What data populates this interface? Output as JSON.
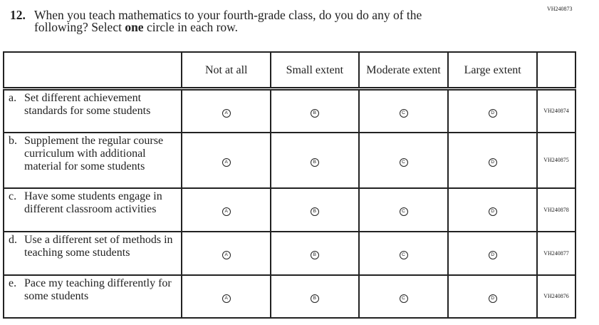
{
  "form_code": "VH240873",
  "question": {
    "number": "12.",
    "line1": "When you teach mathematics to your fourth-grade class, do you do any of the",
    "line2_pre": "following? Select ",
    "line2_bold": "one",
    "line2_post": " circle in each row."
  },
  "columns": [
    "Not at all",
    "Small extent",
    "Moderate extent",
    "Large extent"
  ],
  "bubble_letters": [
    "A",
    "B",
    "C",
    "D"
  ],
  "rows": [
    {
      "letter": "a.",
      "text": "Set different achievement standards for some students",
      "code": "VH240874"
    },
    {
      "letter": "b.",
      "text": "Supplement the regular course curriculum with additional material for some students",
      "code": "VH240875"
    },
    {
      "letter": "c.",
      "text": "Have some students engage in different classroom activities",
      "code": "VH240878"
    },
    {
      "letter": "d.",
      "text": "Use a different set of methods in teaching some students",
      "code": "VH240877"
    },
    {
      "letter": "e.",
      "text": "Pace my teaching differently for some students",
      "code": "VH240876"
    }
  ]
}
